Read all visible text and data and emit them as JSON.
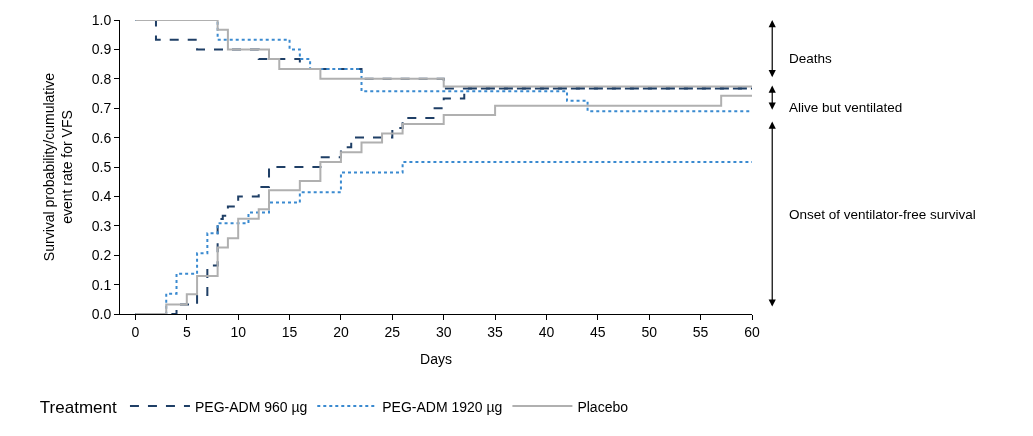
{
  "chart_data": {
    "type": "step",
    "xlabel": "Days",
    "ylabel": "Survival probability/cumulative\nevent rate for VFS",
    "legend_title": "Treatment",
    "legend": "bottom",
    "xlim": [
      -1.5,
      60
    ],
    "xticks": [
      0,
      5,
      10,
      15,
      20,
      25,
      30,
      35,
      40,
      45,
      50,
      55,
      60
    ],
    "ylim": [
      0,
      1
    ],
    "yticks": [
      {
        "value": 0,
        "label": "0.0"
      },
      0.1,
      0.2,
      0.3,
      0.4,
      0.5,
      0.6,
      0.7,
      0.8,
      0.9,
      {
        "value": 1,
        "label": "1.0"
      }
    ],
    "series": [
      {
        "name": "PEG-ADM 960 µg",
        "color": "#1f3f66",
        "line_style": "dashed",
        "x": [
          0,
          2,
          6,
          12,
          16,
          22,
          30,
          60
        ],
        "values": [
          1.0,
          0.933,
          0.9,
          0.867,
          0.833,
          0.8,
          0.767,
          0.767
        ]
      },
      {
        "name": "PEG-ADM 1920 µg",
        "color": "#3a8ad0",
        "line_style": "dotted",
        "x": [
          0,
          8,
          15,
          16,
          17,
          22,
          42,
          44,
          60
        ],
        "values": [
          1.0,
          0.933,
          0.9,
          0.867,
          0.833,
          0.758,
          0.725,
          0.69,
          0.69
        ]
      },
      {
        "name": "Placebo",
        "color": "#b0b0b0",
        "line_style": "solid",
        "x": [
          0,
          8,
          9,
          13,
          14,
          18,
          30,
          60
        ],
        "values": [
          1.0,
          0.967,
          0.9,
          0.867,
          0.833,
          0.8,
          0.774,
          0.774
        ]
      },
      {
        "color": "#1f3f66",
        "line_style": "dashed",
        "x": [
          0,
          4,
          6,
          7,
          8,
          8.5,
          9,
          10,
          12,
          13,
          18,
          20,
          21,
          25,
          26,
          29,
          30,
          32,
          60
        ],
        "values": [
          0,
          0.032,
          0.065,
          0.165,
          0.323,
          0.334,
          0.366,
          0.4,
          0.432,
          0.5,
          0.533,
          0.567,
          0.6,
          0.633,
          0.667,
          0.7,
          0.733,
          0.767,
          0.767
        ]
      },
      {
        "color": "#3a8ad0",
        "line_style": "dotted",
        "x": [
          0,
          3,
          4,
          6,
          7,
          8,
          11,
          13,
          16,
          20,
          26,
          60
        ],
        "values": [
          0,
          0.069,
          0.137,
          0.207,
          0.275,
          0.309,
          0.345,
          0.379,
          0.414,
          0.481,
          0.517,
          0.517
        ]
      },
      {
        "color": "#b0b0b0",
        "line_style": "solid",
        "x": [
          0,
          3,
          5,
          6,
          8,
          9,
          10,
          12,
          13,
          16,
          18,
          20,
          22,
          24,
          26,
          30,
          35,
          57,
          60
        ],
        "values": [
          0,
          0.032,
          0.067,
          0.129,
          0.226,
          0.258,
          0.324,
          0.356,
          0.421,
          0.452,
          0.517,
          0.55,
          0.583,
          0.614,
          0.646,
          0.677,
          0.708,
          0.742,
          0.742
        ]
      }
    ],
    "annotations": [
      "Deaths",
      "Alive but ventilated",
      "Onset of ventilator-free survival"
    ]
  }
}
